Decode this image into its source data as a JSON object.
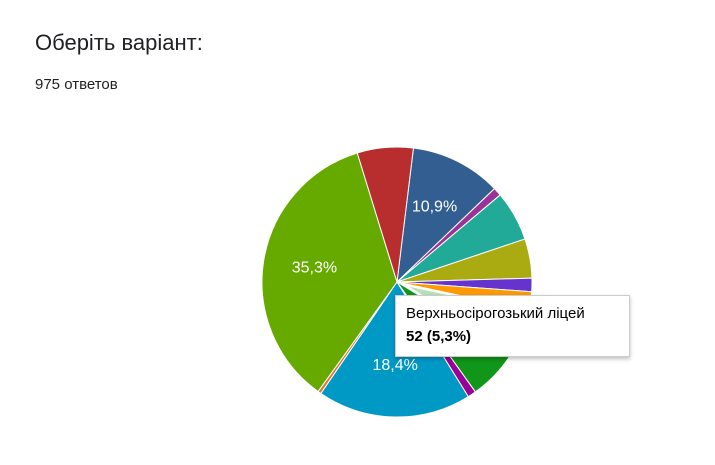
{
  "header": {
    "title": "Оберіть варіант:",
    "responses": "975 ответов"
  },
  "chart_data": {
    "type": "pie",
    "categories": [
      null,
      null,
      null,
      null,
      null,
      null,
      "Верхньосірогозький ліцей",
      null,
      null,
      null,
      null,
      null,
      null
    ],
    "values": [
      10.9,
      1.0,
      6.0,
      4.7,
      1.6,
      2.2,
      5.3,
      6.5,
      1.0,
      18.4,
      0.4,
      35.3,
      6.7
    ],
    "value_labels": [
      "10,9%",
      null,
      null,
      null,
      null,
      null,
      null,
      null,
      null,
      "18,4%",
      null,
      "35,3%",
      null
    ],
    "colors": [
      "#335e91",
      "#993399",
      "#22aa99",
      "#aaaa11",
      "#6633cc",
      "#ff9900",
      "#b7e1b7",
      "#109618",
      "#990099",
      "#0099c6",
      "#dd7733",
      "#66aa00",
      "#b82e2e"
    ],
    "highlighted": 6,
    "tooltip": {
      "label": "Верхньосірогозький ліцей",
      "value": "52 (5,3%)"
    }
  }
}
